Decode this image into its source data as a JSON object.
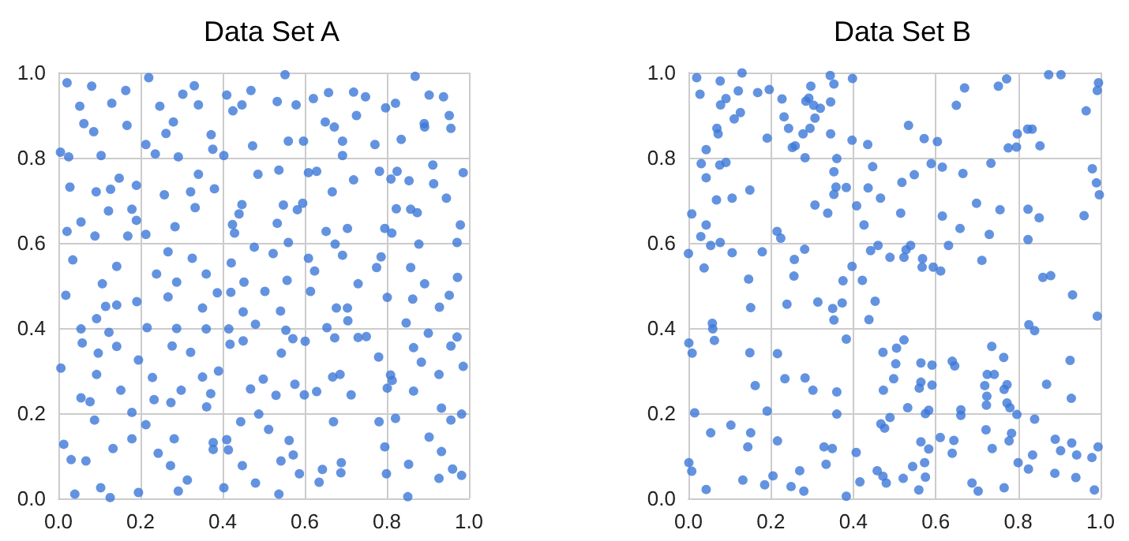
{
  "chart_data": [
    {
      "type": "scatter",
      "title": "Data Set A",
      "color": "#3c78d8",
      "marker": "circle",
      "grid": true,
      "xlim": [
        0,
        1
      ],
      "ylim": [
        0,
        1
      ],
      "xticks": [
        {
          "value": 0,
          "label": "0.0"
        },
        {
          "value": 0.2,
          "label": "0.2"
        },
        {
          "value": 0.4,
          "label": "0.4"
        },
        {
          "value": 0.6,
          "label": "0.6"
        },
        {
          "value": 0.8,
          "label": "0.8"
        },
        {
          "value": 1,
          "label": "1.0"
        }
      ],
      "yticks": [
        {
          "value": 0,
          "label": "0.0"
        },
        {
          "value": 0.2,
          "label": "0.2"
        },
        {
          "value": 0.4,
          "label": "0.4"
        },
        {
          "value": 0.6,
          "label": "0.6"
        },
        {
          "value": 0.8,
          "label": "0.8"
        },
        {
          "value": 1,
          "label": "1.0"
        }
      ],
      "x": [
        0.021,
        0.081,
        0.164,
        0.052,
        0.13,
        0.062,
        0.086,
        0.167,
        0.005,
        0.025,
        0.104,
        0.22,
        0.247,
        0.303,
        0.331,
        0.341,
        0.28,
        0.262,
        0.213,
        0.236,
        0.292,
        0.372,
        0.376,
        0.403,
        0.41,
        0.425,
        0.447,
        0.469,
        0.473,
        0.552,
        0.533,
        0.579,
        0.56,
        0.597,
        0.621,
        0.658,
        0.65,
        0.672,
        0.692,
        0.692,
        0.719,
        0.748,
        0.726,
        0.771,
        0.797,
        0.821,
        0.835,
        0.869,
        0.891,
        0.892,
        0.903,
        0.938,
        0.952,
        0.956,
        0.028,
        0.092,
        0.127,
        0.148,
        0.19,
        0.122,
        0.179,
        0.19,
        0.055,
        0.021,
        0.089,
        0.169,
        0.035,
        0.142,
        0.107,
        0.213,
        0.258,
        0.322,
        0.341,
        0.333,
        0.284,
        0.267,
        0.326,
        0.239,
        0.288,
        0.36,
        0.38,
        0.486,
        0.447,
        0.44,
        0.424,
        0.429,
        0.477,
        0.421,
        0.452,
        0.537,
        0.548,
        0.533,
        0.56,
        0.523,
        0.557,
        0.609,
        0.629,
        0.595,
        0.582,
        0.667,
        0.652,
        0.704,
        0.674,
        0.692,
        0.609,
        0.624,
        0.73,
        0.719,
        0.782,
        0.825,
        0.81,
        0.854,
        0.912,
        0.914,
        0.945,
        0.986,
        0.823,
        0.858,
        0.874,
        0.795,
        0.812,
        0.979,
        0.878,
        0.971,
        0.786,
        0.775,
        0.858,
        0.892,
        0.972,
        0.018,
        0.115,
        0.142,
        0.191,
        0.267,
        0.351,
        0.387,
        0.42,
        0.503,
        0.614,
        0.541,
        0.677,
        0.704,
        0.801,
        0.863,
        0.928,
        0.952,
        0.055,
        0.058,
        0.093,
        0.097,
        0.123,
        0.142,
        0.006,
        0.093,
        0.152,
        0.216,
        0.195,
        0.229,
        0.233,
        0.055,
        0.077,
        0.088,
        0.179,
        0.288,
        0.277,
        0.322,
        0.274,
        0.299,
        0.351,
        0.36,
        0.371,
        0.39,
        0.361,
        0.415,
        0.418,
        0.45,
        0.48,
        0.45,
        0.468,
        0.499,
        0.543,
        0.554,
        0.571,
        0.601,
        0.53,
        0.576,
        0.599,
        0.629,
        0.654,
        0.673,
        0.668,
        0.686,
        0.705,
        0.713,
        0.73,
        0.75,
        0.78,
        0.809,
        0.813,
        0.801,
        0.847,
        0.865,
        0.884,
        0.865,
        0.901,
        0.927,
        0.933,
        0.956,
        0.971,
        0.986,
        0.982,
        0.956,
        0.821,
        0.781,
        0.67,
        0.488,
        0.512,
        0.444,
        0.213,
        0.179,
        0.133,
        0.013,
        0.031,
        0.067,
        0.243,
        0.282,
        0.273,
        0.314,
        0.292,
        0.195,
        0.126,
        0.103,
        0.04,
        0.377,
        0.377,
        0.403,
        0.41,
        0.414,
        0.448,
        0.48,
        0.537,
        0.542,
        0.562,
        0.572,
        0.587,
        0.635,
        0.643,
        0.689,
        0.688,
        0.795,
        0.799,
        0.853,
        0.851,
        0.903,
        0.933,
        0.927,
        0.96,
        0.982
      ],
      "values": [
        0.976,
        0.968,
        0.958,
        0.921,
        0.928,
        0.88,
        0.861,
        0.876,
        0.813,
        0.802,
        0.805,
        0.988,
        0.921,
        0.949,
        0.969,
        0.924,
        0.884,
        0.857,
        0.831,
        0.809,
        0.802,
        0.854,
        0.82,
        0.805,
        0.947,
        0.91,
        0.924,
        0.958,
        0.828,
        0.995,
        0.932,
        0.924,
        0.839,
        0.839,
        0.939,
        0.953,
        0.884,
        0.872,
        0.839,
        0.805,
        0.954,
        0.943,
        0.899,
        0.831,
        0.917,
        0.928,
        0.843,
        0.991,
        0.88,
        0.872,
        0.947,
        0.943,
        0.899,
        0.869,
        0.731,
        0.72,
        0.726,
        0.752,
        0.735,
        0.675,
        0.679,
        0.653,
        0.649,
        0.627,
        0.616,
        0.616,
        0.56,
        0.545,
        0.504,
        0.62,
        0.713,
        0.72,
        0.761,
        0.683,
        0.638,
        0.579,
        0.564,
        0.527,
        0.508,
        0.527,
        0.727,
        0.761,
        0.69,
        0.668,
        0.643,
        0.623,
        0.59,
        0.553,
        0.508,
        0.771,
        0.689,
        0.646,
        0.601,
        0.575,
        0.512,
        0.765,
        0.768,
        0.693,
        0.678,
        0.72,
        0.627,
        0.634,
        0.597,
        0.571,
        0.564,
        0.534,
        0.504,
        0.748,
        0.768,
        0.768,
        0.75,
        0.746,
        0.783,
        0.739,
        0.705,
        0.765,
        0.68,
        0.679,
        0.671,
        0.634,
        0.623,
        0.642,
        0.597,
        0.601,
        0.567,
        0.542,
        0.542,
        0.504,
        0.519,
        0.477,
        0.451,
        0.454,
        0.462,
        0.473,
        0.447,
        0.483,
        0.484,
        0.486,
        0.486,
        0.44,
        0.447,
        0.447,
        0.472,
        0.468,
        0.449,
        0.477,
        0.398,
        0.365,
        0.422,
        0.341,
        0.39,
        0.357,
        0.306,
        0.291,
        0.254,
        0.401,
        0.325,
        0.284,
        0.232,
        0.236,
        0.227,
        0.184,
        0.202,
        0.399,
        0.358,
        0.343,
        0.225,
        0.254,
        0.285,
        0.398,
        0.246,
        0.299,
        0.215,
        0.398,
        0.362,
        0.37,
        0.409,
        0.438,
        0.257,
        0.28,
        0.341,
        0.395,
        0.375,
        0.369,
        0.242,
        0.268,
        0.243,
        0.251,
        0.401,
        0.377,
        0.285,
        0.291,
        0.417,
        0.243,
        0.378,
        0.38,
        0.332,
        0.29,
        0.277,
        0.259,
        0.412,
        0.354,
        0.32,
        0.252,
        0.388,
        0.291,
        0.212,
        0.358,
        0.379,
        0.31,
        0.198,
        0.184,
        0.188,
        0.18,
        0.18,
        0.198,
        0.162,
        0.18,
        0.173,
        0.14,
        0.117,
        0.127,
        0.091,
        0.088,
        0.106,
        0.14,
        0.077,
        0.043,
        0.017,
        0.014,
        0.002,
        0.025,
        0.01,
        0.131,
        0.115,
        0.025,
        0.138,
        0.114,
        0.077,
        0.036,
        0.01,
        0.088,
        0.136,
        0.102,
        0.058,
        0.038,
        0.068,
        0.084,
        0.06,
        0.121,
        0.058,
        0.08,
        0.004,
        0.144,
        0.11,
        0.047,
        0.069,
        0.054
      ]
    },
    {
      "type": "scatter",
      "title": "Data Set B",
      "color": "#3c78d8",
      "marker": "circle",
      "grid": true,
      "xlim": [
        0,
        1
      ],
      "ylim": [
        0,
        1
      ],
      "xticks": [
        {
          "value": 0,
          "label": "0.0"
        },
        {
          "value": 0.2,
          "label": "0.2"
        },
        {
          "value": 0.4,
          "label": "0.4"
        },
        {
          "value": 0.6,
          "label": "0.6"
        },
        {
          "value": 0.8,
          "label": "0.8"
        },
        {
          "value": 1,
          "label": "1.0"
        }
      ],
      "yticks": [
        {
          "value": 0,
          "label": "0.0"
        },
        {
          "value": 0.2,
          "label": "0.2"
        },
        {
          "value": 0.4,
          "label": "0.4"
        },
        {
          "value": 0.6,
          "label": "0.6"
        },
        {
          "value": 0.8,
          "label": "0.8"
        },
        {
          "value": 1,
          "label": "1.0"
        }
      ],
      "x": [
        0.02,
        0.028,
        0.008,
        0.077,
        0.13,
        0.121,
        0.091,
        0.078,
        0.126,
        0.111,
        0.069,
        0.072,
        0.043,
        0.031,
        0.043,
        0.076,
        0.091,
        0.068,
        0.106,
        0.149,
        0.043,
        0.03,
        0.054,
        0.077,
        0.106,
        0.038,
        0.0,
        0.146,
        0.168,
        0.196,
        0.191,
        0.227,
        0.232,
        0.243,
        0.252,
        0.259,
        0.283,
        0.278,
        0.295,
        0.285,
        0.292,
        0.297,
        0.304,
        0.307,
        0.32,
        0.307,
        0.338,
        0.344,
        0.353,
        0.345,
        0.345,
        0.353,
        0.358,
        0.353,
        0.36,
        0.383,
        0.398,
        0.397,
        0.435,
        0.447,
        0.408,
        0.426,
        0.436,
        0.466,
        0.215,
        0.224,
        0.257,
        0.256,
        0.282,
        0.179,
        0.375,
        0.397,
        0.422,
        0.442,
        0.46,
        0.489,
        0.523,
        0.539,
        0.528,
        0.568,
        0.567,
        0.594,
        0.612,
        0.518,
        0.515,
        0.534,
        0.548,
        0.572,
        0.589,
        0.604,
        0.616,
        0.616,
        0.631,
        0.65,
        0.67,
        0.666,
        0.659,
        0.699,
        0.712,
        0.734,
        0.73,
        0.752,
        0.772,
        0.756,
        0.776,
        0.796,
        0.798,
        0.823,
        0.834,
        0.853,
        0.824,
        0.824,
        0.851,
        0.874,
        0.904,
        0.86,
        0.879,
        0.965,
        0.98,
        0.99,
        0.997,
        0.992,
        0.995,
        0.96,
        0.151,
        0.239,
        0.314,
        0.35,
        0.353,
        0.373,
        0.438,
        0.453,
        0.932,
        0.992,
        0.826,
        0.84,
        0.001,
        0.009,
        0.058,
        0.059,
        0.063,
        0.015,
        0.054,
        0.103,
        0.144,
        0.151,
        0.149,
        0.162,
        0.191,
        0.216,
        0.216,
        0.234,
        0.283,
        0.302,
        0.329,
        0.349,
        0.334,
        0.36,
        0.36,
        0.383,
        0.407,
        0.472,
        0.473,
        0.498,
        0.503,
        0.505,
        0.523,
        0.489,
        0.467,
        0.476,
        0.532,
        0.564,
        0.564,
        0.56,
        0.591,
        0.591,
        0.583,
        0.575,
        0.564,
        0.583,
        0.573,
        0.611,
        0.64,
        0.644,
        0.64,
        0.646,
        0.661,
        0.661,
        0.719,
        0.725,
        0.742,
        0.724,
        0.723,
        0.722,
        0.737,
        0.736,
        0.765,
        0.766,
        0.773,
        0.773,
        0.78,
        0.784,
        0.778,
        0.797,
        0.8,
        0.825,
        0.835,
        0.84,
        0.869,
        0.89,
        0.903,
        0.889,
        0.926,
        0.929,
        0.93,
        0.942,
        0.94,
        0.979,
        0.994,
        0.985,
        0.043,
        0.132,
        0.185,
        0.205,
        0.249,
        0.27,
        0.28,
        0.383,
        0.416,
        0.458,
        0.472,
        0.48,
        0.521,
        0.544,
        0.559,
        0.575,
        0.688,
        0.703,
        0.766,
        0.001,
        0.008
      ],
      "values": [
        0.988,
        0.949,
        0.668,
        0.98,
        0.999,
        0.957,
        0.939,
        0.924,
        0.906,
        0.891,
        0.869,
        0.856,
        0.819,
        0.786,
        0.753,
        0.783,
        0.789,
        0.701,
        0.705,
        0.724,
        0.642,
        0.615,
        0.594,
        0.601,
        0.577,
        0.541,
        0.575,
        0.515,
        0.953,
        0.96,
        0.846,
        0.938,
        0.896,
        0.869,
        0.824,
        0.828,
        0.8,
        0.856,
        0.869,
        0.933,
        0.94,
        0.968,
        0.923,
        0.893,
        0.916,
        0.689,
        0.67,
        0.993,
        0.973,
        0.931,
        0.856,
        0.767,
        0.731,
        0.714,
        0.798,
        0.73,
        0.986,
        0.841,
        0.831,
        0.779,
        0.687,
        0.642,
        0.729,
        0.705,
        0.627,
        0.611,
        0.561,
        0.522,
        0.585,
        0.579,
        0.511,
        0.545,
        0.512,
        0.582,
        0.594,
        0.566,
        0.566,
        0.594,
        0.584,
        0.563,
        0.543,
        0.543,
        0.534,
        0.742,
        0.67,
        0.876,
        0.76,
        0.845,
        0.786,
        0.838,
        0.778,
        0.663,
        0.594,
        0.923,
        0.964,
        0.763,
        0.634,
        0.693,
        0.559,
        0.787,
        0.62,
        0.968,
        0.985,
        0.678,
        0.823,
        0.825,
        0.856,
        0.867,
        0.867,
        0.828,
        0.679,
        0.608,
        0.659,
        0.995,
        0.995,
        0.519,
        0.523,
        0.91,
        0.774,
        0.741,
        0.713,
        0.958,
        0.976,
        0.664,
        0.448,
        0.456,
        0.461,
        0.446,
        0.419,
        0.459,
        0.42,
        0.463,
        0.478,
        0.428,
        0.408,
        0.394,
        0.365,
        0.341,
        0.411,
        0.398,
        0.371,
        0.201,
        0.154,
        0.172,
        0.121,
        0.154,
        0.342,
        0.265,
        0.205,
        0.34,
        0.135,
        0.281,
        0.283,
        0.254,
        0.121,
        0.117,
        0.08,
        0.25,
        0.198,
        0.374,
        0.108,
        0.343,
        0.254,
        0.281,
        0.316,
        0.353,
        0.372,
        0.19,
        0.175,
        0.165,
        0.213,
        0.318,
        0.273,
        0.259,
        0.313,
        0.266,
        0.207,
        0.199,
        0.133,
        0.116,
        0.084,
        0.143,
        0.106,
        0.136,
        0.322,
        0.311,
        0.208,
        0.195,
        0.265,
        0.291,
        0.291,
        0.24,
        0.219,
        0.161,
        0.117,
        0.357,
        0.331,
        0.256,
        0.267,
        0.224,
        0.213,
        0.153,
        0.135,
        0.197,
        0.084,
        0.069,
        0.102,
        0.186,
        0.268,
        0.139,
        0.112,
        0.059,
        0.324,
        0.235,
        0.13,
        0.102,
        0.049,
        0.096,
        0.121,
        0.02,
        0.021,
        0.043,
        0.032,
        0.053,
        0.028,
        0.065,
        0.017,
        0.005,
        0.039,
        0.065,
        0.052,
        0.036,
        0.047,
        0.075,
        0.02,
        0.05,
        0.036,
        0.017,
        0.025,
        0.084,
        0.064
      ]
    }
  ]
}
